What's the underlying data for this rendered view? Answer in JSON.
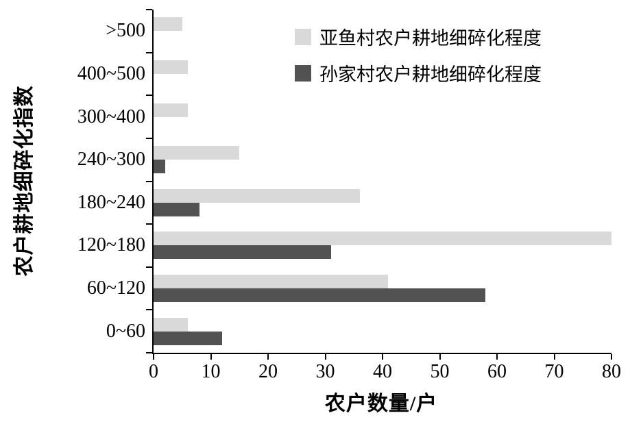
{
  "chart_data": {
    "type": "bar",
    "orientation": "horizontal",
    "title": "",
    "xlabel": "农户数量/户",
    "ylabel": "农户耕地细碎化指数",
    "categories": [
      ">500",
      "400~500",
      "300~400",
      "240~300",
      "180~240",
      "120~180",
      "60~120",
      "0~60"
    ],
    "series": [
      {
        "name": "亚鱼村农户耕地细碎化程度",
        "color": "#d9d9d9",
        "values": [
          5,
          6,
          6,
          15,
          36,
          80,
          41,
          6
        ]
      },
      {
        "name": "孙家村农户耕地细碎化程度",
        "color": "#525252",
        "values": [
          0,
          0,
          0,
          2,
          8,
          31,
          58,
          12
        ]
      }
    ],
    "xlim": [
      0,
      80
    ],
    "xticks": [
      0,
      10,
      20,
      30,
      40,
      50,
      60,
      70,
      80
    ],
    "grid": false,
    "legend_position": "top-right"
  },
  "colors": {
    "axis": "#000000",
    "background": "#ffffff"
  }
}
